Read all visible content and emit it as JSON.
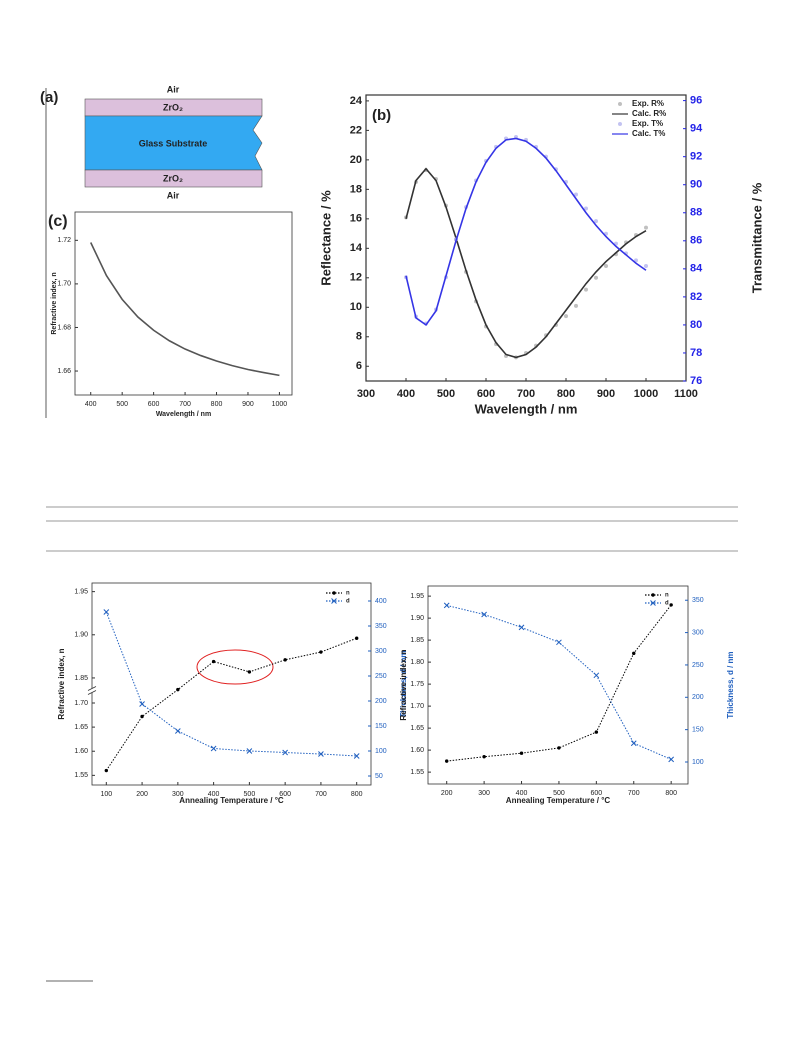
{
  "diagram": {
    "label": "(a)",
    "layers": [
      "Air",
      "ZrO₂",
      "Glass Substrate",
      "ZrO₂",
      "Air"
    ]
  },
  "chart_data": [
    {
      "type": "line",
      "label": "(c)",
      "xlabel": "Wavelength / nm",
      "ylabel": "Refractive index, n",
      "x": [
        400,
        450,
        500,
        550,
        600,
        650,
        700,
        750,
        800,
        850,
        900,
        950,
        1000
      ],
      "series": [
        {
          "color": "#555555",
          "linestyle": "solid",
          "marker": "none",
          "values": [
            1.719,
            1.7038,
            1.6929,
            1.6848,
            1.6787,
            1.6739,
            1.6701,
            1.6671,
            1.6646,
            1.6625,
            1.6607,
            1.6593,
            1.658
          ]
        }
      ],
      "xlim": [
        350,
        1040
      ],
      "ylim": [
        1.649,
        1.733
      ],
      "xticks": [
        400,
        500,
        600,
        700,
        800,
        900,
        1000
      ],
      "yticks": [
        1.66,
        1.68,
        {
          "value": 1.7,
          "label": "1.70"
        },
        1.72
      ]
    },
    {
      "type": "line",
      "label": "(b)",
      "xlabel": "Wavelength / nm",
      "ylabel": "Reflectance / %",
      "y2label": "Transmittance / %",
      "x": [
        400,
        425,
        450,
        475,
        500,
        525,
        550,
        575,
        600,
        625,
        650,
        675,
        700,
        725,
        750,
        775,
        800,
        825,
        850,
        875,
        900,
        925,
        950,
        975,
        1000
      ],
      "series": [
        {
          "name": "Exp. R%",
          "color": "#b0b0b0",
          "linestyle": "none",
          "marker": "circle",
          "values": [
            16.1,
            18.5,
            19.3,
            18.7,
            16.9,
            14.6,
            12.4,
            10.4,
            8.7,
            7.5,
            6.7,
            6.6,
            6.9,
            7.4,
            8.1,
            8.8,
            9.4,
            10.1,
            11.2,
            12.0,
            12.8,
            13.6,
            14.4,
            14.9,
            15.4
          ]
        },
        {
          "name": "Calc. R%",
          "color": "#333333",
          "linestyle": "solid",
          "marker": "none",
          "values": [
            16.0,
            18.6,
            19.4,
            18.6,
            16.8,
            14.7,
            12.5,
            10.5,
            8.8,
            7.6,
            6.8,
            6.6,
            6.8,
            7.3,
            8.0,
            8.9,
            9.8,
            10.7,
            11.6,
            12.4,
            13.1,
            13.7,
            14.3,
            14.8,
            15.2
          ]
        },
        {
          "name": "Exp. T%",
          "color": "#b4b4ee",
          "linestyle": "none",
          "marker": "circle",
          "axis": "y2",
          "values": [
            83.4,
            80.6,
            80.1,
            81.1,
            83.4,
            86.1,
            88.4,
            90.3,
            91.7,
            92.7,
            93.3,
            93.4,
            93.2,
            92.7,
            92.0,
            91.1,
            90.2,
            89.3,
            88.3,
            87.4,
            86.5,
            85.8,
            85.1,
            84.6,
            84.2
          ]
        },
        {
          "name": "Calc. T%",
          "color": "#3535e6",
          "linestyle": "solid",
          "marker": "none",
          "axis": "y2",
          "values": [
            83.5,
            80.5,
            80.0,
            81.0,
            83.5,
            86.0,
            88.3,
            90.2,
            91.6,
            92.6,
            93.2,
            93.3,
            93.1,
            92.6,
            91.9,
            91.0,
            90.0,
            89.0,
            88.0,
            87.1,
            86.3,
            85.6,
            85.0,
            84.4,
            83.9
          ]
        }
      ],
      "xlim": [
        300,
        1100
      ],
      "ylim": [
        5,
        24.4
      ],
      "y2lim": [
        76,
        96.4
      ],
      "y2color": "#2323e8",
      "legend": "upper right",
      "xticks": [
        300,
        400,
        500,
        600,
        700,
        800,
        900,
        1000,
        1100
      ],
      "yticks": [
        6,
        8,
        10,
        12,
        14,
        16,
        18,
        20,
        22,
        24
      ],
      "y2ticks": [
        76,
        78,
        80,
        82,
        84,
        86,
        88,
        90,
        92,
        94,
        96
      ]
    },
    {
      "type": "line",
      "xlabel": "Annealing Temperature / °C",
      "ylabel": "Refractive index, n",
      "y2label": "Thickness, d / nm",
      "x": [
        100,
        200,
        300,
        400,
        500,
        600,
        700,
        800
      ],
      "series": [
        {
          "name": "n",
          "color": "#000000",
          "linestyle": "dotted",
          "marker": "dot",
          "values": [
            1.56,
            1.672,
            1.78,
            1.869,
            1.857,
            1.871,
            1.88,
            1.896
          ]
        },
        {
          "name": "d",
          "color": "#1f5fbf",
          "linestyle": "dotted",
          "marker": "x",
          "axis": "y2",
          "values": [
            378,
            194,
            140,
            105,
            100,
            97,
            94,
            90
          ]
        }
      ],
      "xlim": [
        60,
        840
      ],
      "ylim": [
        1.53,
        1.96
      ],
      "ybreak": [
        1.7,
        1.85
      ],
      "y2lim": [
        32,
        436
      ],
      "y2color": "#1f5fbf",
      "legend": "upper right",
      "xticks": [
        100,
        200,
        300,
        400,
        500,
        600,
        700,
        800
      ],
      "yticks": [
        1.55,
        {
          "value": 1.6,
          "label": "1.60"
        },
        1.65,
        {
          "value": 1.7,
          "label": "1.70"
        },
        1.85,
        {
          "value": 1.9,
          "label": "1.90"
        },
        1.95
      ],
      "y2ticks": [
        50,
        100,
        150,
        200,
        250,
        300,
        350,
        400
      ]
    },
    {
      "type": "line",
      "xlabel": "Annealing Temperature / °C",
      "ylabel": "Refractive index, n",
      "y2label": "Thickness, d / nm",
      "x": [
        200,
        300,
        400,
        500,
        600,
        700,
        800
      ],
      "series": [
        {
          "name": "n",
          "color": "#000000",
          "linestyle": "dotted",
          "marker": "dot",
          "values": [
            1.575,
            1.585,
            1.593,
            1.605,
            1.641,
            1.82,
            1.93
          ]
        },
        {
          "name": "d",
          "color": "#1f5fbf",
          "linestyle": "dotted",
          "marker": "x",
          "axis": "y2",
          "values": [
            342,
            328,
            308,
            285,
            234,
            129,
            104
          ]
        }
      ],
      "xlim": [
        150,
        845
      ],
      "ylim": [
        1.523,
        1.973
      ],
      "y2lim": [
        66,
        372
      ],
      "y2color": "#1f5fbf",
      "legend": "upper right",
      "xticks": [
        200,
        300,
        400,
        500,
        600,
        700,
        800
      ],
      "yticks": [
        1.55,
        {
          "value": 1.6,
          "label": "1.60"
        },
        1.65,
        {
          "value": 1.7,
          "label": "1.70"
        },
        1.75,
        {
          "value": 1.8,
          "label": "1.80"
        },
        1.85,
        {
          "value": 1.9,
          "label": "1.90"
        },
        1.95
      ],
      "y2ticks": [
        100,
        150,
        200,
        250,
        300,
        350
      ]
    }
  ]
}
